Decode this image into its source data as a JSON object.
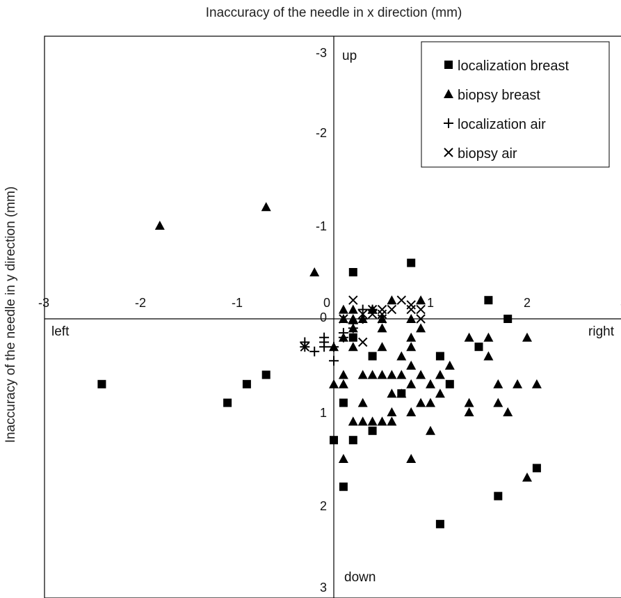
{
  "chart_data": {
    "type": "scatter",
    "title": "",
    "xlabel": "Inaccuracy of the needle in x direction (mm)",
    "ylabel": "Inaccuracy of the needle in y direction (mm)",
    "xlim": [
      -3,
      3
    ],
    "ylim": [
      -3,
      3
    ],
    "y_axis_inverted": true,
    "grid": false,
    "legend_position": "top-right",
    "x_ticks": [
      "-3",
      "-2",
      "-1",
      "0",
      "1",
      "2",
      "3"
    ],
    "y_ticks": [
      "-3",
      "-2",
      "-1",
      "0",
      "1",
      "2",
      "3"
    ],
    "direction_labels": {
      "up": "up",
      "down": "down",
      "left": "left",
      "right": "right"
    },
    "series": [
      {
        "name": "localization breast",
        "marker": "square",
        "points": [
          [
            -2.4,
            0.7
          ],
          [
            -1.1,
            0.9
          ],
          [
            -0.9,
            0.7
          ],
          [
            -0.7,
            0.6
          ],
          [
            0.0,
            1.3
          ],
          [
            0.1,
            1.8
          ],
          [
            0.1,
            0.9
          ],
          [
            0.2,
            0.2
          ],
          [
            0.2,
            -0.5
          ],
          [
            0.2,
            1.3
          ],
          [
            0.4,
            1.2
          ],
          [
            0.4,
            0.4
          ],
          [
            0.7,
            0.8
          ],
          [
            0.8,
            -0.6
          ],
          [
            1.1,
            0.4
          ],
          [
            1.1,
            2.2
          ],
          [
            1.2,
            0.7
          ],
          [
            1.5,
            0.3
          ],
          [
            1.6,
            -0.2
          ],
          [
            1.7,
            1.9
          ],
          [
            1.8,
            0.0
          ],
          [
            2.1,
            1.6
          ]
        ]
      },
      {
        "name": "biopsy breast",
        "marker": "triangle",
        "points": [
          [
            -1.8,
            -1.0
          ],
          [
            -0.7,
            -1.2
          ],
          [
            -0.2,
            -0.5
          ],
          [
            0.0,
            0.7
          ],
          [
            0.0,
            0.3
          ],
          [
            0.1,
            0.2
          ],
          [
            0.1,
            -0.1
          ],
          [
            0.1,
            0.0
          ],
          [
            0.1,
            0.6
          ],
          [
            0.1,
            0.7
          ],
          [
            0.1,
            1.5
          ],
          [
            0.2,
            1.1
          ],
          [
            0.2,
            0.3
          ],
          [
            0.2,
            0.1
          ],
          [
            0.2,
            -0.1
          ],
          [
            0.2,
            0.0
          ],
          [
            0.3,
            0.6
          ],
          [
            0.3,
            1.1
          ],
          [
            0.3,
            0.0
          ],
          [
            0.3,
            0.9
          ],
          [
            0.4,
            0.6
          ],
          [
            0.4,
            1.1
          ],
          [
            0.4,
            -0.1
          ],
          [
            0.4,
            -0.1
          ],
          [
            0.5,
            0.6
          ],
          [
            0.5,
            1.1
          ],
          [
            0.5,
            0.3
          ],
          [
            0.5,
            0.1
          ],
          [
            0.5,
            0.0
          ],
          [
            0.6,
            0.6
          ],
          [
            0.6,
            1.0
          ],
          [
            0.6,
            -0.2
          ],
          [
            0.6,
            0.8
          ],
          [
            0.6,
            1.1
          ],
          [
            0.7,
            0.8
          ],
          [
            0.7,
            0.6
          ],
          [
            0.7,
            0.4
          ],
          [
            0.8,
            1.0
          ],
          [
            0.8,
            0.0
          ],
          [
            0.8,
            0.2
          ],
          [
            0.8,
            0.3
          ],
          [
            0.8,
            0.5
          ],
          [
            0.8,
            0.7
          ],
          [
            0.8,
            1.5
          ],
          [
            0.9,
            0.6
          ],
          [
            0.9,
            0.9
          ],
          [
            0.9,
            0.1
          ],
          [
            0.9,
            -0.2
          ],
          [
            1.0,
            0.7
          ],
          [
            1.0,
            0.9
          ],
          [
            1.0,
            1.2
          ],
          [
            1.1,
            0.6
          ],
          [
            1.1,
            0.8
          ],
          [
            1.2,
            0.5
          ],
          [
            1.4,
            0.9
          ],
          [
            1.4,
            1.0
          ],
          [
            1.4,
            0.2
          ],
          [
            1.6,
            0.2
          ],
          [
            1.6,
            0.4
          ],
          [
            1.7,
            0.9
          ],
          [
            1.7,
            0.7
          ],
          [
            1.8,
            1.0
          ],
          [
            1.9,
            0.7
          ],
          [
            2.0,
            1.7
          ],
          [
            2.0,
            0.2
          ],
          [
            2.1,
            0.7
          ]
        ]
      },
      {
        "name": "localization air",
        "marker": "plus",
        "points": [
          [
            -0.3,
            0.3
          ],
          [
            -0.3,
            0.25
          ],
          [
            -0.2,
            0.35
          ],
          [
            -0.1,
            0.25
          ],
          [
            -0.1,
            0.3
          ],
          [
            -0.1,
            0.2
          ],
          [
            0.0,
            0.3
          ],
          [
            0.0,
            0.45
          ],
          [
            0.1,
            0.2
          ],
          [
            0.1,
            0.15
          ],
          [
            0.2,
            0.05
          ],
          [
            0.3,
            -0.1
          ],
          [
            0.3,
            0.0
          ],
          [
            0.4,
            -0.1
          ],
          [
            0.2,
            0.1
          ]
        ]
      },
      {
        "name": "biopsy air",
        "marker": "x",
        "points": [
          [
            -0.3,
            0.3
          ],
          [
            0.1,
            0.0
          ],
          [
            0.2,
            -0.2
          ],
          [
            0.3,
            0.25
          ],
          [
            0.3,
            -0.05
          ],
          [
            0.4,
            -0.1
          ],
          [
            0.4,
            -0.05
          ],
          [
            0.5,
            -0.1
          ],
          [
            0.5,
            -0.05
          ],
          [
            0.5,
            0.0
          ],
          [
            0.6,
            -0.1
          ],
          [
            0.7,
            -0.2
          ],
          [
            0.8,
            -0.1
          ],
          [
            0.8,
            -0.15
          ],
          [
            0.9,
            -0.1
          ],
          [
            0.9,
            0.0
          ]
        ]
      }
    ]
  }
}
